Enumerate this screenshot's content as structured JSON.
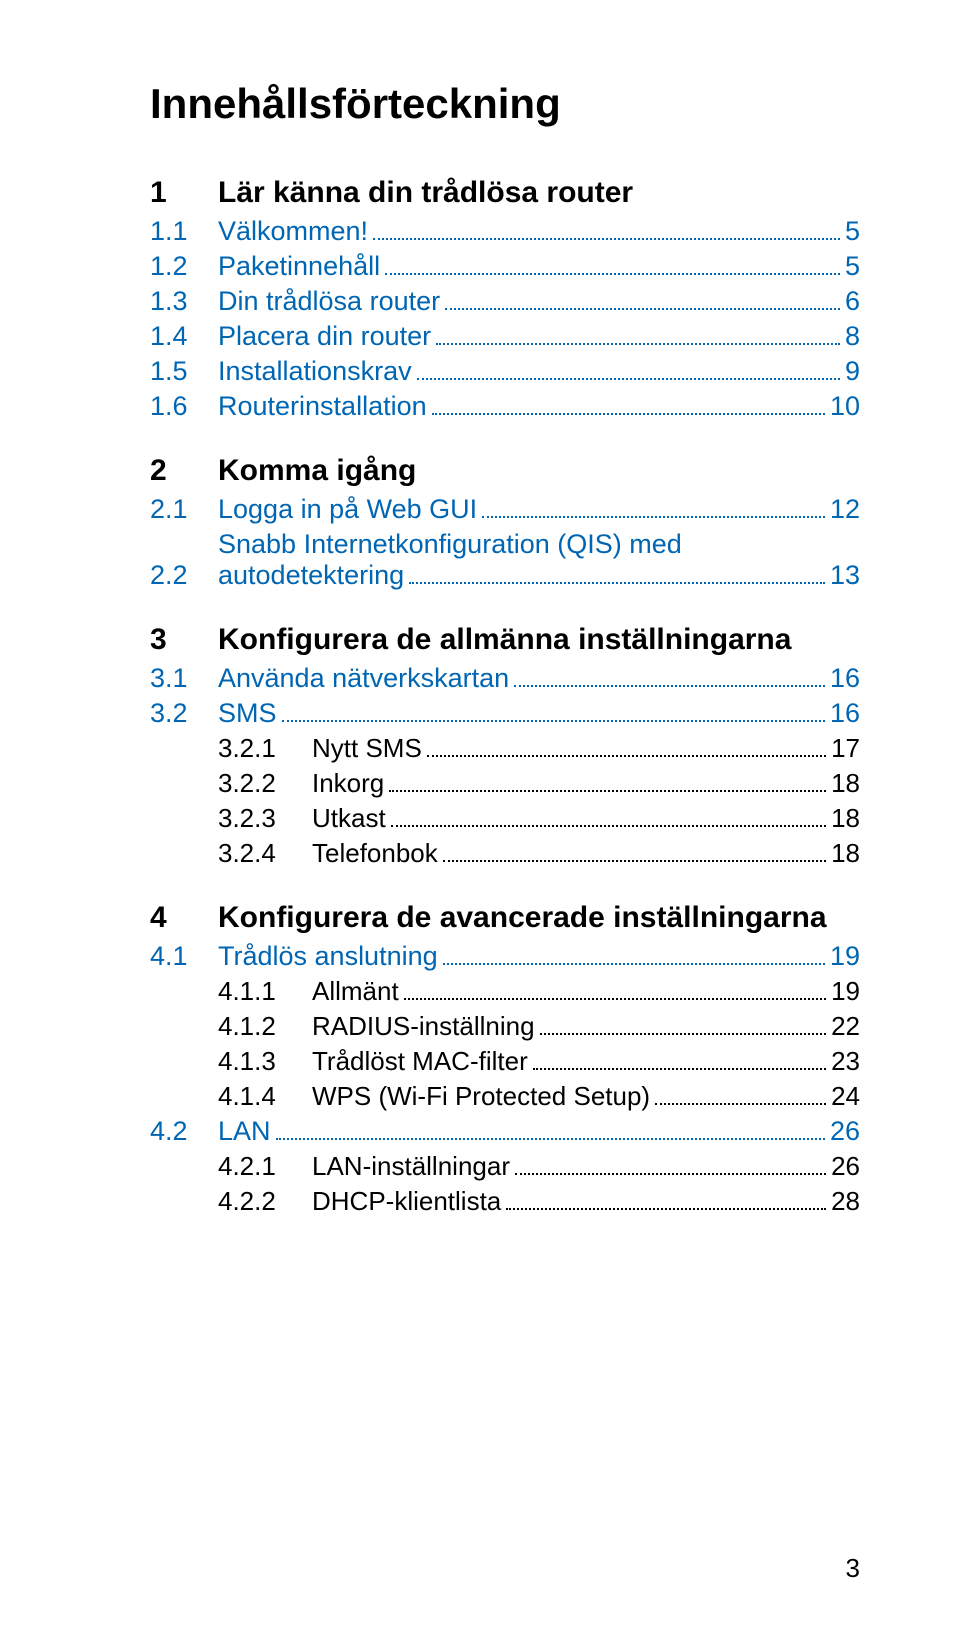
{
  "title": "Innehållsförteckning",
  "colors": {
    "link": "#0066b3",
    "text": "#000000",
    "bg": "#ffffff"
  },
  "fonts": {
    "title_size": 42,
    "section_size": 30,
    "entry_size": 27,
    "sub_size": 26
  },
  "sections": {
    "s1": {
      "num": "1",
      "title": "Lär känna din trådlösa router"
    },
    "s2": {
      "num": "2",
      "title": "Komma igång"
    },
    "s3": {
      "num": "3",
      "title": "Konfigurera de allmänna inställningarna"
    },
    "s4": {
      "num": "4",
      "title": "Konfigurera de avancerade inställningarna"
    }
  },
  "entries": {
    "e11": {
      "num": "1.1",
      "label": "Välkommen!",
      "page": "5"
    },
    "e12": {
      "num": "1.2",
      "label": "Paketinnehåll",
      "page": "5"
    },
    "e13": {
      "num": "1.3",
      "label": "Din trådlösa router",
      "page": "6"
    },
    "e14": {
      "num": "1.4",
      "label": "Placera din router",
      "page": "8"
    },
    "e15": {
      "num": "1.5",
      "label": "Installationskrav",
      "page": "9"
    },
    "e16": {
      "num": "1.6",
      "label": "Routerinstallation",
      "page": "10"
    },
    "e21": {
      "num": "2.1",
      "label": "Logga in på Web GUI",
      "page": "12"
    },
    "e22": {
      "num": "2.2",
      "line1": "Snabb Internetkonfiguration (QIS) med",
      "line2": "autodetektering",
      "page": "13"
    },
    "e31": {
      "num": "3.1",
      "label": "Använda nätverkskartan",
      "page": "16"
    },
    "e32": {
      "num": "3.2",
      "label": "SMS",
      "page": "16"
    },
    "e321": {
      "num": "3.2.1",
      "label": "Nytt SMS",
      "page": "17"
    },
    "e322": {
      "num": "3.2.2",
      "label": "Inkorg",
      "page": "18"
    },
    "e323": {
      "num": "3.2.3",
      "label": "Utkast",
      "page": "18"
    },
    "e324": {
      "num": "3.2.4",
      "label": "Telefonbok",
      "page": "18"
    },
    "e41": {
      "num": "4.1",
      "label": "Trådlös anslutning",
      "page": "19"
    },
    "e411": {
      "num": "4.1.1",
      "label": "Allmänt",
      "page": "19"
    },
    "e412": {
      "num": "4.1.2",
      "label": "RADIUS-inställning",
      "page": "22"
    },
    "e413": {
      "num": "4.1.3",
      "label": "Trådlöst MAC-filter",
      "page": "23"
    },
    "e414": {
      "num": "4.1.4",
      "label": "WPS (Wi-Fi Protected Setup)",
      "page": "24"
    },
    "e42": {
      "num": "4.2",
      "label": "LAN",
      "page": "26"
    },
    "e421": {
      "num": "4.2.1",
      "label": "LAN-inställningar",
      "page": "26"
    },
    "e422": {
      "num": "4.2.2",
      "label": "DHCP-klientlista",
      "page": "28"
    }
  },
  "pageNumber": "3"
}
